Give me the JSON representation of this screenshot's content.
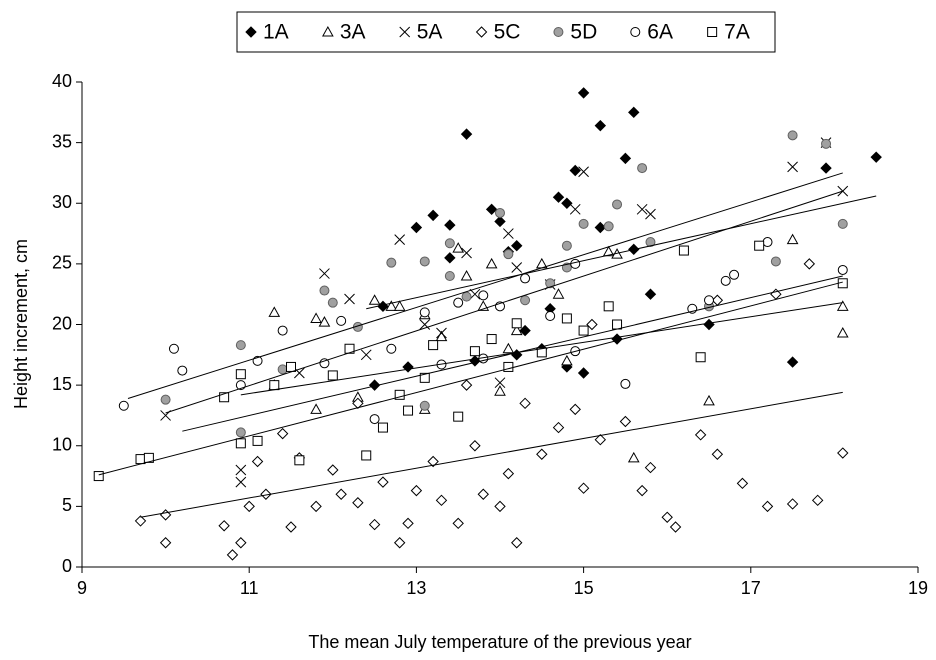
{
  "chart_data": {
    "type": "scatter",
    "x_label": "The mean July temperature of the previous year",
    "y_label": "Height increment, cm",
    "xlim": [
      9,
      19
    ],
    "xticks": [
      9,
      11,
      13,
      15,
      17,
      19
    ],
    "ylim": [
      0,
      40
    ],
    "yticks": [
      0,
      5,
      10,
      15,
      20,
      25,
      30,
      35,
      40
    ],
    "grid": false,
    "legend": "top",
    "series": [
      {
        "name": "1A",
        "marker": "diamond",
        "color": "#000000",
        "filled": true,
        "x": [
          12.5,
          12.6,
          12.9,
          13,
          13.2,
          13.4,
          13.4,
          13.6,
          13.7,
          13.9,
          14,
          14.1,
          14.2,
          14.2,
          14.3,
          14.5,
          14.6,
          14.7,
          14.8,
          14.8,
          14.9,
          15,
          15,
          15.2,
          15.2,
          15.4,
          15.5,
          15.6,
          15.6,
          15.8,
          16.5,
          17.5,
          17.9,
          18.5
        ],
        "values": [
          15,
          21.5,
          16.5,
          28,
          29,
          28.2,
          25.5,
          35.7,
          17,
          29.5,
          28.5,
          26,
          26.5,
          17.5,
          19.5,
          18,
          21.3,
          30.5,
          30,
          16.5,
          32.7,
          39.1,
          16,
          36.4,
          28,
          18.8,
          33.7,
          37.5,
          26.2,
          22.5,
          20,
          16.9,
          32.9,
          33.8
        ]
      },
      {
        "name": "3A",
        "marker": "triangle",
        "color": "#000000",
        "filled": false,
        "x": [
          11.3,
          11.3,
          11.8,
          11.9,
          12.5,
          12.7,
          12.8,
          13.1,
          13.3,
          13.5,
          13.6,
          13.8,
          13.9,
          14.1,
          14.2,
          14.5,
          14.7,
          14.8,
          15.3,
          15.4,
          15.6,
          16.5,
          17.5,
          18.1,
          18.1,
          11.8,
          12.3,
          13.1,
          14
        ],
        "values": [
          21,
          15,
          20.5,
          20.2,
          22,
          21.5,
          21.5,
          20.8,
          19,
          26.3,
          24,
          21.5,
          25,
          18,
          19.5,
          25,
          22.5,
          17,
          26,
          25.8,
          9,
          13.7,
          27,
          19.3,
          21.5,
          13,
          14,
          13,
          14.5
        ]
      },
      {
        "name": "5A",
        "marker": "cross",
        "color": "#000000",
        "filled": false,
        "x": [
          10,
          10.9,
          10.9,
          11.9,
          12.2,
          12.8,
          13.1,
          13.6,
          13.7,
          14.1,
          14.2,
          14.6,
          14.9,
          15,
          15.7,
          15.8,
          17.5,
          18.1,
          17.9,
          11.6,
          12.4,
          13.3,
          14
        ],
        "values": [
          12.5,
          8,
          7,
          24.2,
          22.1,
          27,
          20,
          25.9,
          22.5,
          27.5,
          24.7,
          23.3,
          29.5,
          32.6,
          29.5,
          29.1,
          33,
          31,
          35,
          16,
          17.5,
          19.3,
          15.2
        ]
      },
      {
        "name": "5C",
        "marker": "diamond",
        "color": "#000000",
        "filled": false,
        "x": [
          9.7,
          10,
          10,
          10.7,
          10.8,
          10.9,
          11,
          11.1,
          11.2,
          11.5,
          11.6,
          11.8,
          12,
          12.1,
          12.3,
          12.5,
          12.6,
          12.8,
          12.9,
          13,
          13.2,
          13.3,
          13.5,
          13.7,
          13.8,
          14,
          14.1,
          14.2,
          14.3,
          14.5,
          14.7,
          14.9,
          15,
          15.2,
          15.5,
          15.7,
          15.8,
          16,
          16.1,
          16.4,
          16.6,
          16.9,
          17.2,
          17.5,
          17.7,
          17.8,
          18.1,
          16.6,
          17.3,
          15.1,
          13.6,
          12.3,
          11.4
        ],
        "values": [
          3.8,
          4.3,
          2,
          3.4,
          1,
          2,
          5,
          8.7,
          6,
          3.3,
          9,
          5,
          8,
          6,
          5.3,
          3.5,
          7,
          2,
          3.6,
          6.3,
          8.7,
          5.5,
          3.6,
          10,
          6,
          5,
          7.7,
          2,
          13.5,
          9.3,
          11.5,
          13,
          6.5,
          10.5,
          12,
          6.3,
          8.2,
          4.1,
          3.3,
          10.9,
          9.3,
          6.9,
          5,
          5.2,
          25,
          5.5,
          9.4,
          22,
          22.5,
          20,
          15,
          13.5,
          11
        ]
      },
      {
        "name": "5D",
        "marker": "circle",
        "color": "#a0a0a0",
        "filled": true,
        "x": [
          10,
          10.9,
          10.9,
          11.4,
          11.9,
          12.3,
          12.7,
          13.1,
          13.4,
          13.4,
          13.6,
          14,
          14.1,
          14.3,
          14.6,
          14.8,
          14.8,
          15,
          15.3,
          15.4,
          15.7,
          15.8,
          17.3,
          17.5,
          17.9,
          18.1,
          13.1,
          12,
          16.5
        ],
        "values": [
          13.8,
          18.3,
          11.1,
          16.3,
          22.8,
          19.8,
          25.1,
          25.2,
          26.7,
          24,
          22.3,
          29.2,
          25.8,
          22,
          23.4,
          24.7,
          26.5,
          28.3,
          28.1,
          29.9,
          32.9,
          26.8,
          25.2,
          35.6,
          34.9,
          28.3,
          13.3,
          21.8,
          21.5
        ]
      },
      {
        "name": "6A",
        "marker": "circle",
        "color": "#000000",
        "filled": false,
        "x": [
          9.5,
          10.1,
          10.2,
          10.9,
          11.1,
          11.4,
          11.9,
          12.1,
          12.5,
          12.7,
          13.1,
          13.3,
          13.5,
          13.8,
          14,
          14.3,
          14.6,
          14.9,
          15.4,
          15.5,
          16.3,
          16.5,
          16.7,
          16.8,
          17.2,
          18.1,
          14.9,
          13.8
        ],
        "values": [
          13.3,
          18,
          16.2,
          15,
          17,
          19.5,
          16.8,
          20.3,
          12.2,
          18,
          21,
          16.7,
          21.8,
          22.4,
          21.5,
          23.8,
          20.7,
          25,
          20,
          15.1,
          21.3,
          22,
          23.6,
          24.1,
          26.8,
          24.5,
          17.8,
          17.2
        ]
      },
      {
        "name": "7A",
        "marker": "square",
        "color": "#000000",
        "filled": false,
        "x": [
          9.2,
          9.7,
          9.8,
          10.7,
          10.9,
          10.9,
          11.1,
          11.3,
          11.5,
          11.6,
          12,
          12.2,
          12.4,
          12.6,
          12.8,
          13.1,
          13.2,
          13.5,
          13.7,
          13.9,
          14.1,
          14.2,
          14.5,
          14.8,
          15,
          15.3,
          15.4,
          16.2,
          16.4,
          17.1,
          18.1,
          12.9
        ],
        "values": [
          7.5,
          8.9,
          9,
          14,
          10.2,
          15.9,
          10.4,
          15,
          16.5,
          8.8,
          15.8,
          18,
          9.2,
          11.5,
          14.2,
          15.6,
          18.3,
          12.4,
          17.8,
          18.8,
          16.5,
          20.1,
          17.7,
          20.5,
          19.5,
          21.5,
          20,
          26.1,
          17.3,
          26.5,
          23.4,
          12.9
        ]
      }
    ],
    "trendlines": [
      {
        "x": [
          9.55,
          18.1
        ],
        "values": [
          13.9,
          32.5
        ]
      },
      {
        "x": [
          12.4,
          18.5
        ],
        "values": [
          21.3,
          30.6
        ]
      },
      {
        "x": [
          10,
          18.1
        ],
        "values": [
          12.7,
          31
        ]
      },
      {
        "x": [
          10.2,
          18.1
        ],
        "values": [
          11.2,
          24
        ]
      },
      {
        "x": [
          9.2,
          18.1
        ],
        "values": [
          7.6,
          23.5
        ]
      },
      {
        "x": [
          10.9,
          18.1
        ],
        "values": [
          14.2,
          21.8
        ]
      },
      {
        "x": [
          9.7,
          18.1
        ],
        "values": [
          4.1,
          14.4
        ]
      }
    ]
  }
}
